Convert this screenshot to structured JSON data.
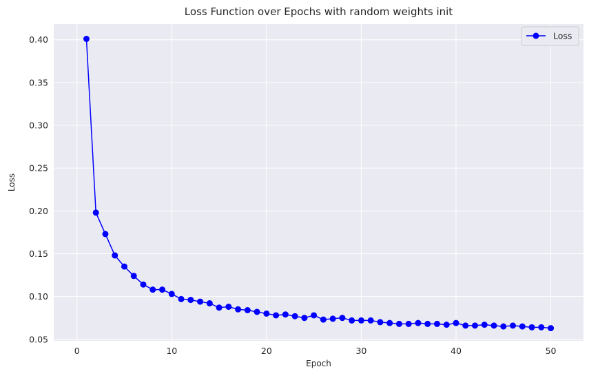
{
  "chart_data": {
    "type": "line",
    "title": "Loss Function over Epochs with random weights init",
    "xlabel": "Epoch",
    "ylabel": "Loss",
    "xlim": [
      -2.45,
      53.45
    ],
    "ylim": [
      0.0482,
      0.4183
    ],
    "xticks": [
      0,
      10,
      20,
      30,
      40,
      50
    ],
    "yticks": [
      0.05,
      0.1,
      0.15,
      0.2,
      0.25,
      0.3,
      0.35,
      0.4
    ],
    "ytick_labels": [
      "0.05",
      "0.10",
      "0.15",
      "0.20",
      "0.25",
      "0.30",
      "0.35",
      "0.40"
    ],
    "grid": true,
    "legend_position": "top-right",
    "series": [
      {
        "name": "Loss",
        "color": "#0000ff",
        "marker": "circle",
        "x": [
          1,
          2,
          3,
          4,
          5,
          6,
          7,
          8,
          9,
          10,
          11,
          12,
          13,
          14,
          15,
          16,
          17,
          18,
          19,
          20,
          21,
          22,
          23,
          24,
          25,
          26,
          27,
          28,
          29,
          30,
          31,
          32,
          33,
          34,
          35,
          36,
          37,
          38,
          39,
          40,
          41,
          42,
          43,
          44,
          45,
          46,
          47,
          48,
          49,
          50
        ],
        "y": [
          0.401,
          0.198,
          0.173,
          0.148,
          0.135,
          0.124,
          0.114,
          0.108,
          0.108,
          0.103,
          0.097,
          0.096,
          0.094,
          0.092,
          0.087,
          0.088,
          0.085,
          0.084,
          0.082,
          0.08,
          0.078,
          0.079,
          0.077,
          0.075,
          0.078,
          0.073,
          0.074,
          0.075,
          0.072,
          0.072,
          0.072,
          0.07,
          0.069,
          0.068,
          0.068,
          0.069,
          0.068,
          0.068,
          0.067,
          0.069,
          0.066,
          0.066,
          0.067,
          0.066,
          0.065,
          0.066,
          0.065,
          0.064,
          0.064,
          0.063
        ]
      }
    ]
  },
  "colors": {
    "plot_background": "#eaeaf2",
    "grid": "#ffffff",
    "line": "#0000ff"
  }
}
